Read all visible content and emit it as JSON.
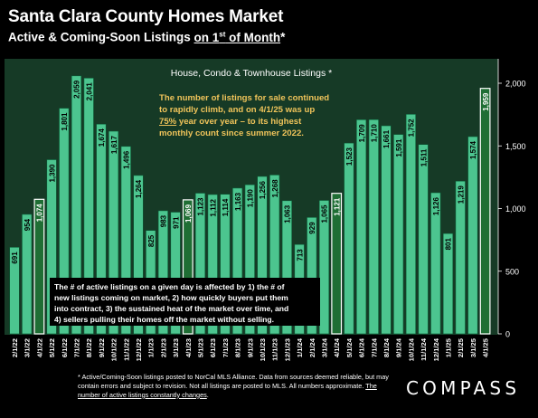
{
  "header": {
    "title": "Santa Clara County Homes Market",
    "subtitle_pre": "Active & Coming-Soon Listings ",
    "subtitle_underlined": "on 1",
    "subtitle_sup": "st",
    "subtitle_underlined2": " of Month",
    "subtitle_post": "*"
  },
  "chart_data": {
    "type": "bar",
    "title": "House, Condo & Townhouse Listings *",
    "categories": [
      "2/1/22",
      "3/1/22",
      "4/1/22",
      "5/1/22",
      "6/1/22",
      "7/1/22",
      "8/1/22",
      "9/1/22",
      "10/1/22",
      "11/1/22",
      "12/1/22",
      "1/1/23",
      "2/1/23",
      "3/1/23",
      "4/1/23",
      "5/1/23",
      "6/1/23",
      "7/1/23",
      "8/1/23",
      "9/1/23",
      "10/1/23",
      "11/1/23",
      "12/1/23",
      "1/1/24",
      "2/1/24",
      "3/1/24",
      "4/1/24",
      "5/1/24",
      "6/1/24",
      "7/1/24",
      "8/1/24",
      "9/1/24",
      "10/1/24",
      "11/1/24",
      "12/1/24",
      "1/1/25",
      "2/1/25",
      "3/1/25",
      "4/1/25"
    ],
    "values": [
      691,
      954,
      1074,
      1390,
      1801,
      2059,
      2041,
      1674,
      1617,
      1496,
      1264,
      825,
      983,
      971,
      1069,
      1123,
      1112,
      1114,
      1163,
      1190,
      1256,
      1268,
      1063,
      713,
      929,
      1065,
      1121,
      1523,
      1709,
      1710,
      1661,
      1591,
      1752,
      1511,
      1126,
      801,
      1219,
      1574,
      1959
    ],
    "labels": [
      "691",
      "954",
      "1,074",
      "1,390",
      "1,801",
      "2,059",
      "2,041",
      "1,674",
      "1,617",
      "1,496",
      "1,264",
      "825",
      "983",
      "971",
      "1,069",
      "1,123",
      "1,112",
      "1,114",
      "1,163",
      "1,190",
      "1,256",
      "1,268",
      "1,063",
      "713",
      "929",
      "1,065",
      "1,121",
      "1,523",
      "1,709",
      "1,710",
      "1,661",
      "1,591",
      "1,752",
      "1,511",
      "1,126",
      "801",
      "1,219",
      "1,574",
      "1,959"
    ],
    "highlighted_categories": [
      "4/1/22",
      "4/1/23",
      "4/1/24",
      "4/1/25"
    ],
    "y_ticks": [
      0,
      500,
      1000,
      1500,
      2000
    ],
    "y_tick_labels": [
      "0",
      "500",
      "1,000",
      "1,500",
      "2,000"
    ],
    "ylim": [
      0,
      2150
    ],
    "y_axis_side": "right",
    "grid": false,
    "colors": {
      "bar": "#4cc58f",
      "bar_edge": "#0a5a35",
      "highlight": "#1f6e34",
      "highlight_edge": "#ffffff",
      "plot_background": "#163a26",
      "callout_text": "#f0c45a"
    },
    "callout": {
      "lines": [
        "The number of listings for sale continued",
        "to rapidly climb, and on 4/1/25 was up",
        "75% year over year – to its highest",
        "monthly count since summer 2022."
      ],
      "emphasis": "75%"
    },
    "note_box": {
      "lines": [
        "The # of active listings on a given day is affected by 1) the # of",
        "new listings coming on market, 2) how quickly buyers put them",
        "into contract, 3) the sustained heat of the market over time, and",
        "4) sellers pulling their homes off the market without selling."
      ]
    }
  },
  "footer": {
    "footnote_main": "* Active/Coming-Soon listings posted to NorCal MLS Alliance.  Data from sources deemed reliable, but may contain errors and subject to revision.  Not all listings are posted to MLS. All numbers approximate. ",
    "footnote_underlined": "The number of active listings constantly changes",
    "footnote_end": ".",
    "brand": "COMPASS"
  }
}
